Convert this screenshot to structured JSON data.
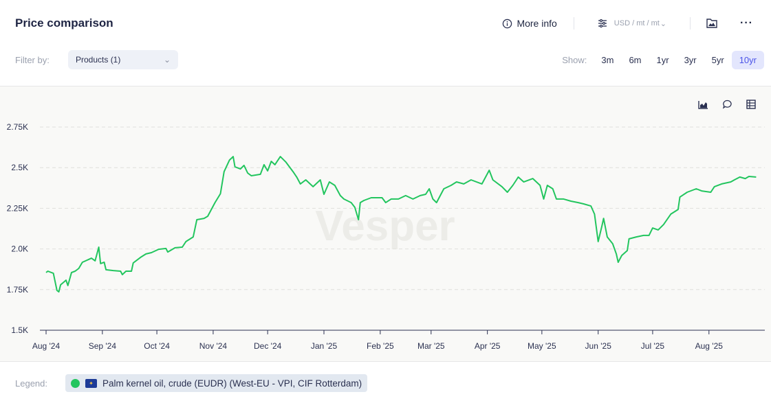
{
  "header": {
    "title": "Price comparison",
    "more_info": "More info",
    "unit": "USD / mt / mt"
  },
  "filter": {
    "label": "Filter by:",
    "value": "Products (1)"
  },
  "show": {
    "label": "Show:",
    "ranges": [
      "3m",
      "6m",
      "1yr",
      "3yr",
      "5yr",
      "10yr"
    ],
    "active": "10yr"
  },
  "watermark": "Vesper",
  "legend": {
    "label": "Legend:",
    "series_name": "Palm kernel oil, crude (EUDR) (West-EU - VPI, CIF Rotterdam)",
    "color": "#22c55e"
  },
  "chart_data": {
    "type": "line",
    "title": "Price comparison",
    "xlabel": "",
    "ylabel": "USD / mt",
    "x_unit": "days since 1 Aug 2024",
    "xlim": [
      0,
      395
    ],
    "ylim": [
      1500,
      2750
    ],
    "grid": true,
    "yticks": [
      1500,
      1750,
      2000,
      2250,
      2500,
      2750
    ],
    "ytick_labels": [
      "1.5K",
      "1.75K",
      "2.0K",
      "2.25K",
      "2.5K",
      "2.75K"
    ],
    "xticks": [
      0,
      31,
      61,
      92,
      122,
      153,
      184,
      212,
      243,
      273,
      304,
      334,
      365
    ],
    "xtick_labels": [
      "Aug '24",
      "Sep '24",
      "Oct '24",
      "Nov '24",
      "Dec '24",
      "Jan '25",
      "Feb '25",
      "Mar '25",
      "Apr '25",
      "May '25",
      "Jun '25",
      "Jul '25",
      "Aug '25"
    ],
    "series": [
      {
        "name": "Palm kernel oil, crude (EUDR) (West-EU - VPI, CIF Rotterdam)",
        "color": "#22c55e",
        "points": [
          [
            0,
            1855
          ],
          [
            1,
            1863
          ],
          [
            4,
            1850
          ],
          [
            6,
            1745
          ],
          [
            7,
            1736
          ],
          [
            8,
            1779
          ],
          [
            11,
            1808
          ],
          [
            12,
            1775
          ],
          [
            14,
            1855
          ],
          [
            16,
            1863
          ],
          [
            18,
            1880
          ],
          [
            20,
            1918
          ],
          [
            25,
            1943
          ],
          [
            27,
            1927
          ],
          [
            29,
            2011
          ],
          [
            30,
            1910
          ],
          [
            32,
            1918
          ],
          [
            33,
            1872
          ],
          [
            37,
            1867
          ],
          [
            41,
            1863
          ],
          [
            42,
            1842
          ],
          [
            44,
            1863
          ],
          [
            47,
            1863
          ],
          [
            48,
            1914
          ],
          [
            52,
            1948
          ],
          [
            55,
            1969
          ],
          [
            58,
            1977
          ],
          [
            62,
            1998
          ],
          [
            66,
            2003
          ],
          [
            67,
            1981
          ],
          [
            71,
            2007
          ],
          [
            75,
            2011
          ],
          [
            77,
            2045
          ],
          [
            81,
            2074
          ],
          [
            83,
            2180
          ],
          [
            87,
            2188
          ],
          [
            89,
            2201
          ],
          [
            93,
            2285
          ],
          [
            96,
            2340
          ],
          [
            98,
            2475
          ],
          [
            101,
            2547
          ],
          [
            103,
            2568
          ],
          [
            104,
            2505
          ],
          [
            107,
            2492
          ],
          [
            109,
            2514
          ],
          [
            111,
            2467
          ],
          [
            113,
            2450
          ],
          [
            118,
            2459
          ],
          [
            120,
            2518
          ],
          [
            122,
            2480
          ],
          [
            124,
            2539
          ],
          [
            126,
            2518
          ],
          [
            129,
            2568
          ],
          [
            132,
            2535
          ],
          [
            136,
            2475
          ],
          [
            138,
            2442
          ],
          [
            140,
            2400
          ],
          [
            143,
            2425
          ],
          [
            147,
            2383
          ],
          [
            151,
            2425
          ],
          [
            153,
            2336
          ],
          [
            156,
            2412
          ],
          [
            159,
            2391
          ],
          [
            162,
            2328
          ],
          [
            164,
            2307
          ],
          [
            168,
            2285
          ],
          [
            170,
            2256
          ],
          [
            172,
            2180
          ],
          [
            173,
            2285
          ],
          [
            175,
            2298
          ],
          [
            179,
            2315
          ],
          [
            185,
            2315
          ],
          [
            187,
            2285
          ],
          [
            190,
            2307
          ],
          [
            194,
            2307
          ],
          [
            198,
            2328
          ],
          [
            202,
            2307
          ],
          [
            206,
            2328
          ],
          [
            209,
            2336
          ],
          [
            211,
            2370
          ],
          [
            213,
            2307
          ],
          [
            215,
            2285
          ],
          [
            219,
            2370
          ],
          [
            223,
            2391
          ],
          [
            226,
            2412
          ],
          [
            230,
            2400
          ],
          [
            234,
            2425
          ],
          [
            240,
            2400
          ],
          [
            244,
            2484
          ],
          [
            246,
            2425
          ],
          [
            251,
            2383
          ],
          [
            254,
            2349
          ],
          [
            257,
            2391
          ],
          [
            259,
            2425
          ],
          [
            260,
            2442
          ],
          [
            263,
            2412
          ],
          [
            268,
            2433
          ],
          [
            272,
            2391
          ],
          [
            274,
            2307
          ],
          [
            276,
            2391
          ],
          [
            279,
            2370
          ],
          [
            281,
            2307
          ],
          [
            285,
            2307
          ],
          [
            289,
            2294
          ],
          [
            293,
            2285
          ],
          [
            296,
            2277
          ],
          [
            300,
            2264
          ],
          [
            302,
            2214
          ],
          [
            304,
            2045
          ],
          [
            306,
            2138
          ],
          [
            307,
            2188
          ],
          [
            309,
            2074
          ],
          [
            312,
            2032
          ],
          [
            314,
            1969
          ],
          [
            315,
            1918
          ],
          [
            317,
            1960
          ],
          [
            320,
            1990
          ],
          [
            321,
            2062
          ],
          [
            325,
            2074
          ],
          [
            329,
            2083
          ],
          [
            332,
            2083
          ],
          [
            334,
            2129
          ],
          [
            337,
            2117
          ],
          [
            340,
            2150
          ],
          [
            344,
            2214
          ],
          [
            348,
            2243
          ],
          [
            349,
            2319
          ],
          [
            353,
            2349
          ],
          [
            358,
            2370
          ],
          [
            361,
            2357
          ],
          [
            366,
            2349
          ],
          [
            368,
            2383
          ],
          [
            372,
            2400
          ],
          [
            377,
            2412
          ],
          [
            379,
            2425
          ],
          [
            382,
            2442
          ],
          [
            385,
            2433
          ],
          [
            387,
            2446
          ],
          [
            391,
            2442
          ]
        ]
      }
    ]
  }
}
